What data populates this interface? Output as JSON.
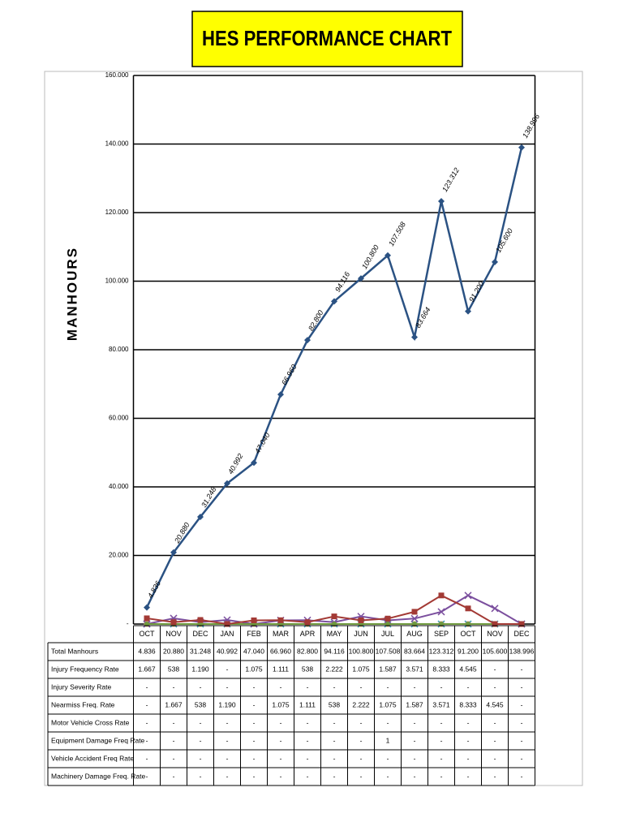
{
  "chart_data": {
    "type": "line",
    "title": "HES PERFORMANCE CHART",
    "y_label": "MANHOURS",
    "categories": [
      "OCT",
      "NOV",
      "DEC",
      "JAN",
      "FEB",
      "MAR",
      "APR",
      "MAY",
      "JUN",
      "JUL",
      "AUG",
      "SEP",
      "OCT",
      "NOV",
      "DEC"
    ],
    "ylim": [
      0,
      160000
    ],
    "yticks": [
      {
        "value": 0,
        "label": "-"
      },
      {
        "value": 20000,
        "label": "20.000"
      },
      {
        "value": 40000,
        "label": "40.000"
      },
      {
        "value": 60000,
        "label": "60.000"
      },
      {
        "value": 80000,
        "label": "80.000"
      },
      {
        "value": 100000,
        "label": "100.000"
      },
      {
        "value": 120000,
        "label": "120.000"
      },
      {
        "value": 140000,
        "label": "140.000"
      },
      {
        "value": 160000,
        "label": "160.000"
      }
    ],
    "grid": true,
    "series": [
      {
        "name": "Total Manhours",
        "color": "#2b5283",
        "values": [
          4836,
          20880,
          31248,
          40992,
          47040,
          66960,
          82800,
          94116,
          100800,
          107508,
          83664,
          123312,
          91200,
          105600,
          138996
        ],
        "value_labels": [
          "4.836",
          "20.880",
          "31.248",
          "40.992",
          "47.040",
          "66.960",
          "82.800",
          "94.116",
          "100.800",
          "107.508",
          "83.664",
          "123.312",
          "91.200",
          "105.600",
          "138.996"
        ]
      },
      {
        "name": "Injury Frequency Rate",
        "color": "#a33a35",
        "values": [
          1667,
          538,
          1190,
          0,
          1075,
          1111,
          538,
          2222,
          1075,
          1587,
          3571,
          8333,
          4545,
          0,
          0
        ],
        "value_labels": [
          "1.667",
          "538",
          "1.190",
          "-",
          "1.075",
          "1.111",
          "538",
          "2.222",
          "1.075",
          "1.587",
          "3.571",
          "8.333",
          "4.545",
          "-",
          "-"
        ]
      },
      {
        "name": "Injury Severity Rate",
        "color": "#6f9a3e",
        "values": [
          0,
          0,
          0,
          0,
          0,
          0,
          0,
          0,
          0,
          0,
          0,
          0,
          0,
          0,
          0
        ],
        "value_labels": [
          "-",
          "-",
          "-",
          "-",
          "-",
          "-",
          "-",
          "-",
          "-",
          "-",
          "-",
          "-",
          "-",
          "-",
          "-"
        ]
      },
      {
        "name": "Nearmiss Freq. Rate",
        "color": "#7b4f9e",
        "values": [
          0,
          1667,
          538,
          1190,
          0,
          1075,
          1111,
          538,
          2222,
          1075,
          1587,
          3571,
          8333,
          4545,
          0
        ],
        "value_labels": [
          "-",
          "1.667",
          "538",
          "1.190",
          "-",
          "1.075",
          "1.111",
          "538",
          "2.222",
          "1.075",
          "1.587",
          "3.571",
          "8.333",
          "4.545",
          "-"
        ]
      },
      {
        "name": "Motor Vehicle Cross Rate",
        "color": "#3d9bb5",
        "values": [
          0,
          0,
          0,
          0,
          0,
          0,
          0,
          0,
          0,
          0,
          0,
          0,
          0,
          0,
          0
        ],
        "value_labels": [
          "-",
          "-",
          "-",
          "-",
          "-",
          "-",
          "-",
          "-",
          "-",
          "-",
          "-",
          "-",
          "-",
          "-",
          "-"
        ]
      },
      {
        "name": "Equipment Damage Freq Rate",
        "color": "#e08a3c",
        "values": [
          0,
          0,
          0,
          0,
          0,
          0,
          0,
          0,
          0,
          1,
          0,
          0,
          0,
          0,
          0
        ],
        "value_labels": [
          "-",
          "-",
          "-",
          "-",
          "-",
          "-",
          "-",
          "-",
          "-",
          "1",
          "-",
          "-",
          "-",
          "-",
          "-"
        ]
      },
      {
        "name": "Vehicle Accident Freq Rate",
        "color": "#9bb0d6",
        "values": [
          0,
          0,
          0,
          0,
          0,
          0,
          0,
          0,
          0,
          0,
          0,
          0,
          0,
          0,
          0
        ],
        "value_labels": [
          "-",
          "-",
          "-",
          "-",
          "-",
          "-",
          "-",
          "-",
          "-",
          "-",
          "-",
          "-",
          "-",
          "-",
          "-"
        ]
      },
      {
        "name": "Machinery Damage Freq. Rate",
        "color": "#d9a28a",
        "values": [
          0,
          0,
          0,
          0,
          0,
          0,
          0,
          0,
          0,
          0,
          0,
          0,
          0,
          0,
          0
        ],
        "value_labels": [
          "-",
          "-",
          "-",
          "-",
          "-",
          "-",
          "-",
          "-",
          "-",
          "-",
          "-",
          "-",
          "-",
          "-",
          "-"
        ]
      }
    ]
  }
}
